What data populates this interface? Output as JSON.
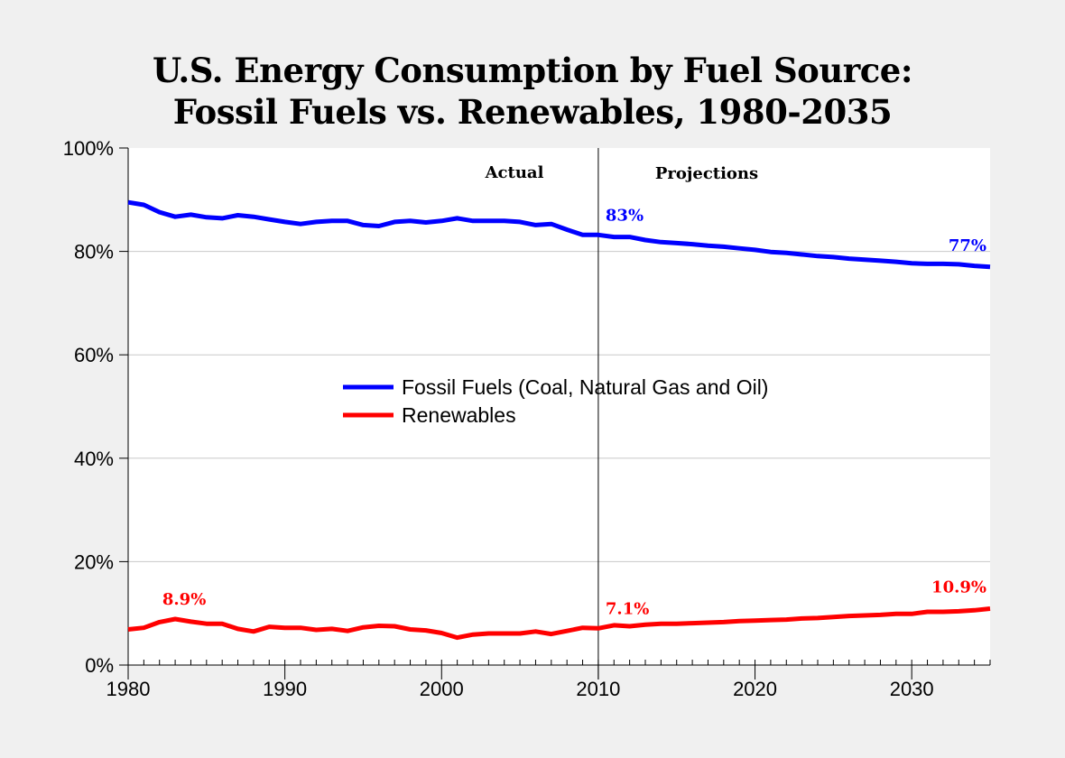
{
  "chart_data": {
    "type": "line",
    "title_line1": "U.S. Energy Consumption by Fuel Source:",
    "title_line2": "Fossil Fuels vs. Renewables, 1980-2035",
    "xlabel": "",
    "ylabel": "",
    "xlim": [
      1980,
      2035
    ],
    "ylim": [
      0,
      100
    ],
    "x_ticks": [
      1980,
      1990,
      2000,
      2010,
      2020,
      2030
    ],
    "y_ticks": [
      "0%",
      "20%",
      "40%",
      "60%",
      "80%",
      "100%"
    ],
    "grid": "horizontal",
    "legend_placement": "center",
    "divider_year": 2010,
    "region_labels": {
      "left": "Actual",
      "right": "Projections"
    },
    "x": [
      1980,
      1981,
      1982,
      1983,
      1984,
      1985,
      1986,
      1987,
      1988,
      1989,
      1990,
      1991,
      1992,
      1993,
      1994,
      1995,
      1996,
      1997,
      1998,
      1999,
      2000,
      2001,
      2002,
      2003,
      2004,
      2005,
      2006,
      2007,
      2008,
      2009,
      2010,
      2011,
      2012,
      2013,
      2014,
      2015,
      2016,
      2017,
      2018,
      2019,
      2020,
      2021,
      2022,
      2023,
      2024,
      2025,
      2026,
      2027,
      2028,
      2029,
      2030,
      2031,
      2032,
      2033,
      2034,
      2035
    ],
    "series": [
      {
        "name": "Fossil Fuels (Coal, Natural Gas and Oil)",
        "color": "#0000ff",
        "values": [
          89.5,
          89.0,
          87.6,
          86.7,
          87.1,
          86.6,
          86.4,
          87.0,
          86.7,
          86.2,
          85.7,
          85.3,
          85.7,
          85.9,
          85.9,
          85.1,
          84.9,
          85.7,
          85.9,
          85.6,
          85.9,
          86.4,
          85.9,
          85.9,
          85.9,
          85.7,
          85.1,
          85.3,
          84.2,
          83.2,
          83.2,
          82.8,
          82.8,
          82.2,
          81.8,
          81.6,
          81.4,
          81.1,
          80.9,
          80.6,
          80.3,
          79.9,
          79.7,
          79.4,
          79.1,
          78.9,
          78.6,
          78.4,
          78.2,
          78.0,
          77.7,
          77.6,
          77.6,
          77.5,
          77.2,
          77.0
        ],
        "annotations": [
          {
            "x": 2010,
            "label": "83%"
          },
          {
            "x": 2035,
            "label": "77%"
          }
        ]
      },
      {
        "name": "Renewables",
        "color": "#ff0000",
        "values": [
          6.9,
          7.2,
          8.3,
          8.9,
          8.4,
          8.0,
          8.0,
          7.0,
          6.5,
          7.4,
          7.2,
          7.2,
          6.8,
          7.0,
          6.6,
          7.3,
          7.6,
          7.5,
          6.9,
          6.7,
          6.2,
          5.3,
          5.9,
          6.1,
          6.1,
          6.1,
          6.5,
          6.0,
          6.6,
          7.2,
          7.1,
          7.7,
          7.5,
          7.8,
          8.0,
          8.0,
          8.1,
          8.2,
          8.3,
          8.5,
          8.6,
          8.7,
          8.8,
          9.0,
          9.1,
          9.3,
          9.5,
          9.6,
          9.7,
          9.9,
          9.9,
          10.3,
          10.3,
          10.4,
          10.6,
          10.9
        ],
        "annotations": [
          {
            "x": 1983,
            "label": "8.9%"
          },
          {
            "x": 2010,
            "label": "7.1%"
          },
          {
            "x": 2035,
            "label": "10.9%"
          }
        ]
      }
    ]
  }
}
